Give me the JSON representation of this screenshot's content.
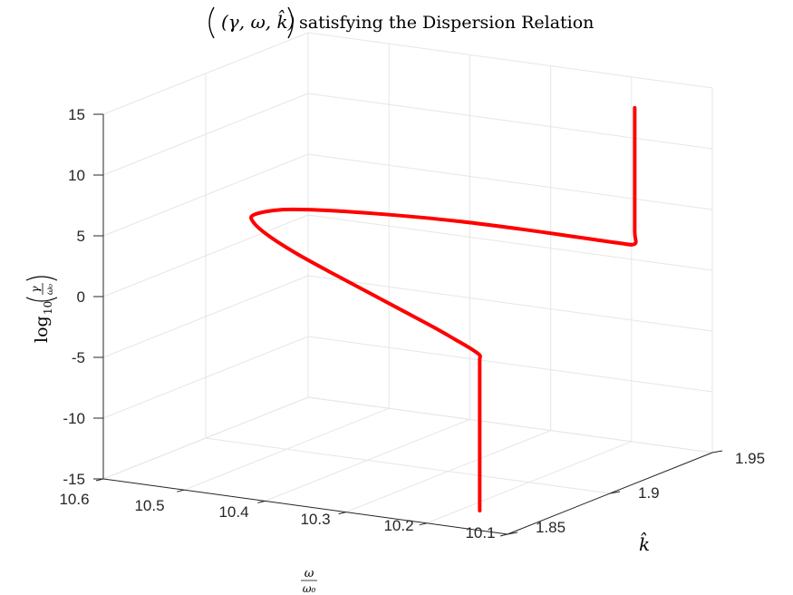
{
  "chart_data": {
    "type": "line",
    "projection": "3d",
    "title": "(γ, ω, k̂) satisfying the Dispersion Relation",
    "title_math": "(γ, ω, k̂)",
    "title_text": "satisfying the Dispersion Relation",
    "xlabel": "ω / ω₀",
    "xlabel_num": "ω",
    "xlabel_den": "ω₀",
    "ylabel": "k̂",
    "zlabel": "log10(γ/ω0)",
    "zlabel_log": "log",
    "zlabel_sub": "10",
    "zlabel_num": "γ",
    "zlabel_den": "ω₀",
    "xlim": [
      10.1,
      10.6
    ],
    "ylim": [
      1.85,
      1.95
    ],
    "zlim": [
      -15,
      15
    ],
    "x_ticks": [
      "10.6",
      "10.5",
      "10.4",
      "10.3",
      "10.2",
      "10.1"
    ],
    "y_ticks": [
      "1.85",
      "1.9",
      "1.95"
    ],
    "z_ticks": [
      "15",
      "10",
      "5",
      "0",
      "-5",
      "-10",
      "-15"
    ],
    "grid": true,
    "series": [
      {
        "color": "#ff0000",
        "x": [
          10.18,
          10.18,
          10.18,
          10.18,
          10.18,
          10.18,
          10.18,
          10.19,
          10.21,
          10.24,
          10.28,
          10.33,
          10.38,
          10.43,
          10.47,
          10.5,
          10.51,
          10.49,
          10.45,
          10.39,
          10.32,
          10.25,
          10.18,
          10.14,
          10.12,
          10.12,
          10.12,
          10.12,
          10.12
        ],
        "y": [
          1.868,
          1.868,
          1.868,
          1.868,
          1.868,
          1.868,
          1.868,
          1.868,
          1.868,
          1.869,
          1.87,
          1.872,
          1.874,
          1.877,
          1.88,
          1.884,
          1.888,
          1.894,
          1.9,
          1.906,
          1.912,
          1.916,
          1.919,
          1.92,
          1.92,
          1.92,
          1.92,
          1.92,
          1.92
        ],
        "z": [
          -15,
          -10,
          -6,
          -4,
          -3,
          -2.5,
          -2.2,
          -1.8,
          -1.2,
          -0.5,
          0.4,
          1.4,
          2.4,
          3.3,
          4.1,
          4.7,
          5,
          5.2,
          5.1,
          4.9,
          4.6,
          4.3,
          4,
          3.9,
          4,
          5,
          8,
          12,
          15.2
        ]
      }
    ]
  }
}
